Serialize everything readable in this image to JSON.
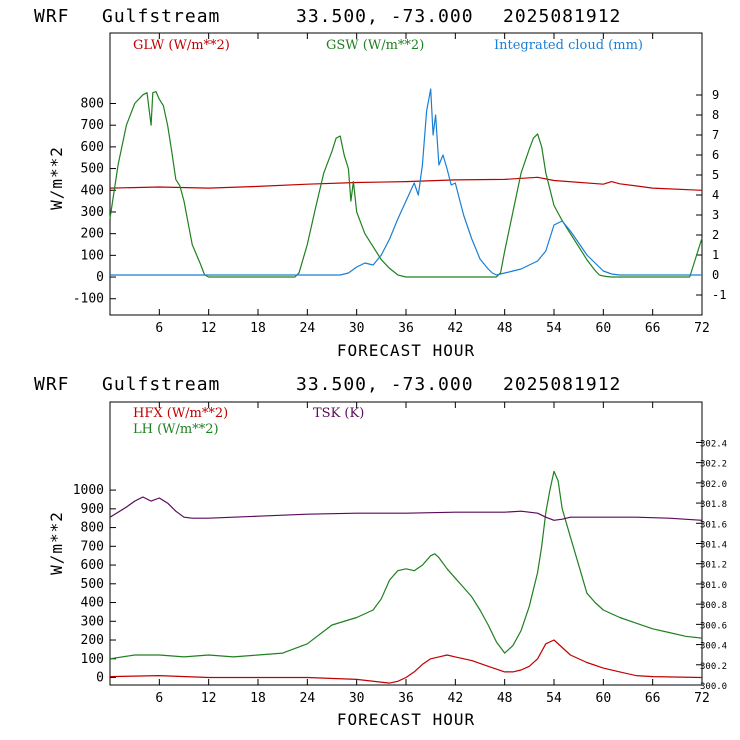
{
  "header": {
    "model": "WRF",
    "location": "Gulfstream",
    "coords": "33.500, -73.000",
    "run": "2025081912"
  },
  "colors": {
    "glw": "#c00000",
    "gsw": "#208020",
    "cloud": "#1a7fd4",
    "hfx": "#c00000",
    "lh": "#208020",
    "tsk": "#5a0a5a"
  },
  "chart_data": [
    {
      "type": "line",
      "xlabel": "FORECAST HOUR",
      "ylabel": "W/m**2",
      "xlim": [
        0,
        72
      ],
      "xticks": [
        "6",
        "12",
        "18",
        "24",
        "30",
        "36",
        "42",
        "48",
        "54",
        "60",
        "66",
        "72"
      ],
      "ylim": [
        -175,
        1125
      ],
      "yticks": [
        "-100",
        "0",
        "100",
        "200",
        "300",
        "400",
        "500",
        "600",
        "700",
        "800"
      ],
      "y2lim": [
        -2.0,
        12.1
      ],
      "y2ticks": [
        "-1",
        "0",
        "1",
        "2",
        "3",
        "4",
        "5",
        "6",
        "7",
        "8",
        "9"
      ],
      "grid": false,
      "legend": "top",
      "series": [
        {
          "name": "GLW (W/m**2)",
          "axis": "left",
          "color_key": "glw",
          "x": [
            0,
            6,
            12,
            18,
            24,
            30,
            36,
            42,
            48,
            52,
            54,
            60,
            61,
            62,
            66,
            72
          ],
          "y": [
            410,
            415,
            410,
            418,
            428,
            436,
            440,
            448,
            450,
            460,
            445,
            428,
            440,
            430,
            410,
            400
          ]
        },
        {
          "name": "GSW (W/m**2)",
          "axis": "left",
          "color_key": "gsw",
          "x": [
            0,
            1,
            2,
            3,
            4,
            4.5,
            5,
            5.2,
            5.6,
            6,
            6.5,
            7,
            7.5,
            8,
            8.5,
            9,
            9.5,
            10,
            11,
            11.5,
            12,
            22.5,
            23,
            24,
            25,
            26,
            27,
            27.5,
            28,
            28.5,
            29,
            29.3,
            29.6,
            30,
            31,
            32,
            33,
            34,
            35,
            36,
            36.5,
            47,
            47.5,
            48,
            49,
            50,
            51,
            51.5,
            52,
            52.5,
            53,
            54,
            55,
            56,
            57,
            58,
            59,
            59.5,
            60,
            60.5,
            61,
            70.5,
            71,
            72
          ],
          "y": [
            270,
            520,
            700,
            800,
            840,
            850,
            700,
            850,
            855,
            820,
            790,
            700,
            580,
            450,
            420,
            350,
            250,
            150,
            60,
            10,
            0,
            0,
            20,
            150,
            320,
            480,
            580,
            640,
            650,
            560,
            500,
            350,
            440,
            300,
            200,
            140,
            80,
            40,
            10,
            0,
            0,
            0,
            20,
            120,
            300,
            480,
            590,
            640,
            660,
            600,
            480,
            330,
            260,
            200,
            140,
            80,
            30,
            10,
            5,
            2,
            0,
            0,
            60,
            180
          ]
        },
        {
          "name": "Integrated cloud (mm)",
          "axis": "right",
          "color_key": "cloud",
          "x": [
            0,
            28,
            29,
            30,
            31,
            32,
            33,
            34,
            35,
            36,
            37,
            37.5,
            38,
            38.5,
            39,
            39.3,
            39.6,
            40,
            40.5,
            41,
            41.5,
            42,
            43,
            44,
            45,
            46,
            46.5,
            47,
            47.5,
            48,
            49,
            50,
            51,
            52,
            53,
            54,
            55,
            56,
            57,
            58,
            59,
            60,
            61,
            62,
            62.5,
            72
          ],
          "y": [
            0,
            0,
            0.1,
            0.4,
            0.6,
            0.5,
            1.0,
            1.8,
            2.8,
            3.7,
            4.6,
            4.0,
            5.5,
            8.2,
            9.3,
            7.0,
            8.0,
            5.5,
            6.0,
            5.3,
            4.5,
            4.6,
            3.0,
            1.8,
            0.8,
            0.3,
            0.1,
            0.0,
            0.05,
            0.1,
            0.2,
            0.3,
            0.5,
            0.7,
            1.2,
            2.5,
            2.7,
            2.2,
            1.6,
            1.0,
            0.6,
            0.2,
            0.05,
            0,
            0,
            0
          ]
        }
      ]
    },
    {
      "type": "line",
      "xlabel": "FORECAST HOUR",
      "ylabel": "W/m**2",
      "xlim": [
        0,
        72
      ],
      "xticks": [
        "6",
        "12",
        "18",
        "24",
        "30",
        "36",
        "42",
        "48",
        "54",
        "60",
        "66",
        "72"
      ],
      "ylim": [
        -40,
        1470
      ],
      "yticks": [
        "0",
        "100",
        "200",
        "300",
        "400",
        "500",
        "600",
        "700",
        "800",
        "900",
        "1000"
      ],
      "y2lim": [
        300.0,
        302.8
      ],
      "y2ticks": [
        "300.0",
        "300.2",
        "300.4",
        "300.6",
        "300.8",
        "301.0",
        "301.2",
        "301.4",
        "301.6",
        "301.8",
        "302.0",
        "302.2",
        "302.4"
      ],
      "grid": false,
      "legend": "top-left",
      "series": [
        {
          "name": "HFX (W/m**2)",
          "axis": "left",
          "color_key": "hfx",
          "x": [
            0,
            6,
            12,
            18,
            24,
            30,
            34,
            35,
            36,
            37,
            38,
            39,
            40,
            41,
            42,
            44,
            46,
            48,
            49,
            50,
            51,
            52,
            53,
            54,
            55,
            56,
            58,
            60,
            62,
            64,
            66,
            72
          ],
          "y": [
            5,
            10,
            0,
            0,
            0,
            -10,
            -30,
            -20,
            0,
            30,
            70,
            100,
            110,
            120,
            110,
            90,
            60,
            30,
            30,
            40,
            60,
            100,
            180,
            200,
            160,
            120,
            80,
            50,
            30,
            10,
            5,
            0
          ]
        },
        {
          "name": "LH (W/m**2)",
          "axis": "left",
          "color_key": "lh",
          "x": [
            0,
            3,
            6,
            9,
            12,
            15,
            18,
            21,
            24,
            27,
            30,
            32,
            33,
            34,
            35,
            36,
            37,
            38,
            39,
            39.5,
            40,
            41,
            42,
            43,
            44,
            45,
            46,
            47,
            48,
            49,
            50,
            51,
            52,
            52.5,
            53,
            53.5,
            54,
            54.5,
            55,
            56,
            57,
            58,
            59,
            60,
            62,
            64,
            66,
            68,
            70,
            72
          ],
          "y": [
            100,
            120,
            120,
            110,
            120,
            110,
            120,
            130,
            180,
            280,
            320,
            360,
            420,
            520,
            570,
            580,
            570,
            600,
            650,
            660,
            640,
            580,
            530,
            480,
            430,
            360,
            280,
            190,
            130,
            170,
            250,
            380,
            560,
            700,
            880,
            1000,
            1100,
            1050,
            900,
            750,
            600,
            450,
            400,
            360,
            320,
            290,
            260,
            240,
            220,
            210
          ]
        },
        {
          "name": "TSK (K)",
          "axis": "right",
          "color_key": "tsk",
          "x": [
            0,
            2,
            3,
            4,
            5,
            6,
            7,
            8,
            9,
            10,
            12,
            18,
            24,
            30,
            36,
            42,
            48,
            50,
            52,
            53,
            54,
            55,
            56,
            58,
            60,
            64,
            68,
            72
          ],
          "y": [
            301.66,
            301.76,
            301.82,
            301.86,
            301.82,
            301.85,
            301.8,
            301.72,
            301.66,
            301.65,
            301.65,
            301.67,
            301.69,
            301.7,
            301.7,
            301.71,
            301.71,
            301.72,
            301.7,
            301.66,
            301.63,
            301.64,
            301.66,
            301.66,
            301.66,
            301.66,
            301.65,
            301.63
          ]
        }
      ]
    }
  ]
}
